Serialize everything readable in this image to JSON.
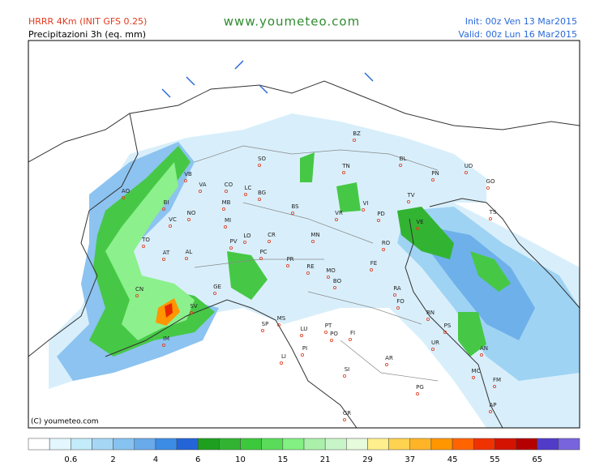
{
  "header": {
    "model": "HRRR 4Km (INIT GFS 0.25)",
    "field": "Precipitazioni 3h (eq. mm)",
    "site": "www.youmeteo.com",
    "init": "Init: 00z Ven  13 Mar2015",
    "valid": "Valid: 00z Lun  16 Mar2015"
  },
  "copyright": "(C) youmeteo.com",
  "cities": [
    "BZ",
    "TN",
    "BL",
    "PN",
    "UD",
    "GO",
    "TS",
    "VB",
    "SO",
    "CO",
    "LC",
    "BG",
    "VA",
    "MB",
    "BI",
    "AO",
    "NO",
    "VC",
    "MI",
    "BS",
    "VR",
    "VI",
    "TV",
    "PD",
    "VE",
    "RO",
    "TO",
    "AT",
    "AL",
    "PV",
    "LO",
    "CR",
    "PC",
    "MN",
    "FE",
    "PR",
    "RE",
    "MO",
    "BO",
    "RA",
    "CN",
    "GE",
    "SV",
    "IM",
    "SP",
    "MS",
    "LU",
    "PT",
    "FI",
    "PO",
    "RN",
    "PS",
    "UR",
    "AN",
    "AR",
    "SI",
    "MC",
    "FM",
    "PG",
    "AP",
    "GR",
    "LI",
    "PI",
    "FO"
  ],
  "scale": {
    "labels": [
      0.6,
      2,
      4,
      6,
      10,
      15,
      21,
      29,
      37,
      45,
      55,
      65
    ]
  }
}
